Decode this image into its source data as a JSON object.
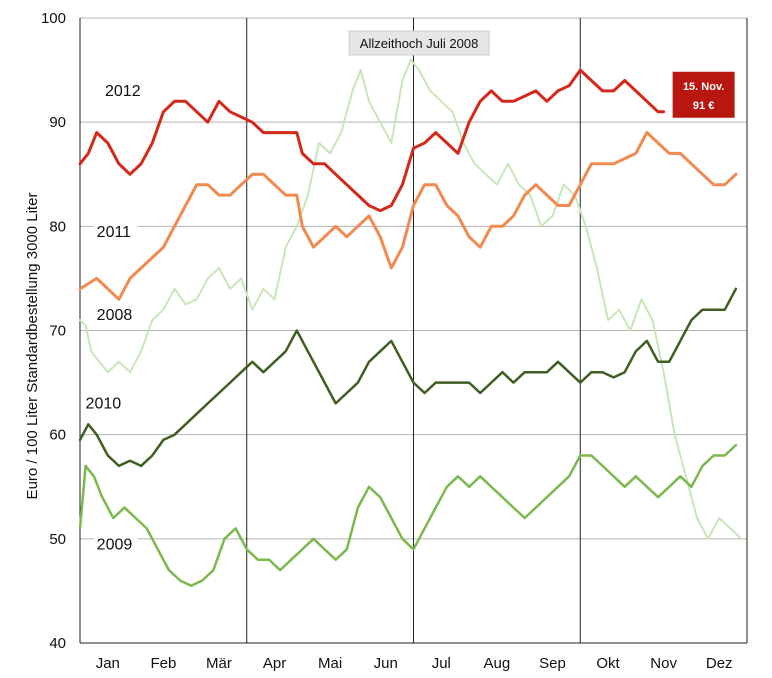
{
  "chart_data": {
    "type": "line",
    "title": "",
    "ylabel": "Euro / 100 Liter Standardbestellung 3000 Liter",
    "xlabel": "",
    "ylim": [
      40,
      100
    ],
    "yticks": [
      40,
      50,
      60,
      70,
      80,
      90,
      100
    ],
    "months": [
      "Jan",
      "Feb",
      "Mär",
      "Apr",
      "Mai",
      "Jun",
      "Jul",
      "Aug",
      "Sep",
      "Okt",
      "Nov",
      "Dez"
    ],
    "grid": {
      "horizontal": true,
      "vertical_month_lines": true
    },
    "annotation": {
      "text": "Allzeithoch Juli 2008",
      "month": 6.1,
      "value": 97.6
    },
    "callout": {
      "line1": "15. Nov.",
      "line2": "91 €",
      "color": "#b8170f"
    },
    "series": [
      {
        "name": "2008",
        "color": "#c8e6b8",
        "width": 2,
        "label_pos": {
          "month": 0.3,
          "value": 71
        },
        "points": [
          [
            0,
            71
          ],
          [
            0.1,
            70.5
          ],
          [
            0.2,
            68
          ],
          [
            0.35,
            67
          ],
          [
            0.5,
            66
          ],
          [
            0.7,
            67
          ],
          [
            0.9,
            66
          ],
          [
            1.1,
            68
          ],
          [
            1.3,
            71
          ],
          [
            1.5,
            72
          ],
          [
            1.7,
            74
          ],
          [
            1.9,
            72.5
          ],
          [
            2.1,
            73
          ],
          [
            2.3,
            75
          ],
          [
            2.5,
            76
          ],
          [
            2.7,
            74
          ],
          [
            2.9,
            75
          ],
          [
            3.1,
            72
          ],
          [
            3.3,
            74
          ],
          [
            3.5,
            73
          ],
          [
            3.7,
            78
          ],
          [
            3.9,
            80
          ],
          [
            4.1,
            83
          ],
          [
            4.3,
            88
          ],
          [
            4.5,
            87
          ],
          [
            4.7,
            89
          ],
          [
            4.9,
            93
          ],
          [
            5.05,
            95
          ],
          [
            5.2,
            92
          ],
          [
            5.4,
            90
          ],
          [
            5.6,
            88
          ],
          [
            5.8,
            94
          ],
          [
            5.95,
            96
          ],
          [
            6.1,
            95
          ],
          [
            6.3,
            93
          ],
          [
            6.5,
            92
          ],
          [
            6.7,
            91
          ],
          [
            6.9,
            88
          ],
          [
            7.1,
            86
          ],
          [
            7.3,
            85
          ],
          [
            7.5,
            84
          ],
          [
            7.7,
            86
          ],
          [
            7.9,
            84
          ],
          [
            8.1,
            83
          ],
          [
            8.3,
            80
          ],
          [
            8.5,
            81
          ],
          [
            8.7,
            84
          ],
          [
            8.9,
            83
          ],
          [
            9.1,
            80
          ],
          [
            9.3,
            76
          ],
          [
            9.5,
            71
          ],
          [
            9.7,
            72
          ],
          [
            9.9,
            70
          ],
          [
            10.1,
            73
          ],
          [
            10.3,
            71
          ],
          [
            10.5,
            66
          ],
          [
            10.7,
            60
          ],
          [
            10.9,
            56
          ],
          [
            11.1,
            52
          ],
          [
            11.3,
            50
          ],
          [
            11.5,
            52
          ],
          [
            11.7,
            51
          ],
          [
            11.9,
            50
          ]
        ]
      },
      {
        "name": "2009",
        "color": "#7bb94f",
        "width": 2.5,
        "label_pos": {
          "month": 0.3,
          "value": 49
        },
        "points": [
          [
            0,
            51
          ],
          [
            0.1,
            57
          ],
          [
            0.25,
            56
          ],
          [
            0.4,
            54
          ],
          [
            0.6,
            52
          ],
          [
            0.8,
            53
          ],
          [
            1.0,
            52
          ],
          [
            1.2,
            51
          ],
          [
            1.4,
            49
          ],
          [
            1.6,
            47
          ],
          [
            1.8,
            46
          ],
          [
            2.0,
            45.5
          ],
          [
            2.2,
            46
          ],
          [
            2.4,
            47
          ],
          [
            2.6,
            50
          ],
          [
            2.8,
            51
          ],
          [
            3.0,
            49
          ],
          [
            3.2,
            48
          ],
          [
            3.4,
            48
          ],
          [
            3.6,
            47
          ],
          [
            3.8,
            48
          ],
          [
            4.0,
            49
          ],
          [
            4.2,
            50
          ],
          [
            4.4,
            49
          ],
          [
            4.6,
            48
          ],
          [
            4.8,
            49
          ],
          [
            5.0,
            53
          ],
          [
            5.2,
            55
          ],
          [
            5.4,
            54
          ],
          [
            5.6,
            52
          ],
          [
            5.8,
            50
          ],
          [
            6.0,
            49
          ],
          [
            6.2,
            51
          ],
          [
            6.4,
            53
          ],
          [
            6.6,
            55
          ],
          [
            6.8,
            56
          ],
          [
            7.0,
            55
          ],
          [
            7.2,
            56
          ],
          [
            7.4,
            55
          ],
          [
            7.6,
            54
          ],
          [
            7.8,
            53
          ],
          [
            8.0,
            52
          ],
          [
            8.2,
            53
          ],
          [
            8.4,
            54
          ],
          [
            8.6,
            55
          ],
          [
            8.8,
            56
          ],
          [
            9.0,
            58
          ],
          [
            9.2,
            58
          ],
          [
            9.4,
            57
          ],
          [
            9.6,
            56
          ],
          [
            9.8,
            55
          ],
          [
            10.0,
            56
          ],
          [
            10.2,
            55
          ],
          [
            10.4,
            54
          ],
          [
            10.6,
            55
          ],
          [
            10.8,
            56
          ],
          [
            11.0,
            55
          ],
          [
            11.2,
            57
          ],
          [
            11.4,
            58
          ],
          [
            11.6,
            58
          ],
          [
            11.8,
            59
          ]
        ]
      },
      {
        "name": "2010",
        "color": "#3f5f22",
        "width": 2.5,
        "label_pos": {
          "month": 0.1,
          "value": 62.5
        },
        "points": [
          [
            0,
            59.5
          ],
          [
            0.15,
            61
          ],
          [
            0.3,
            60
          ],
          [
            0.5,
            58
          ],
          [
            0.7,
            57
          ],
          [
            0.9,
            57.5
          ],
          [
            1.1,
            57
          ],
          [
            1.3,
            58
          ],
          [
            1.5,
            59.5
          ],
          [
            1.7,
            60
          ],
          [
            1.9,
            61
          ],
          [
            2.1,
            62
          ],
          [
            2.3,
            63
          ],
          [
            2.5,
            64
          ],
          [
            2.7,
            65
          ],
          [
            2.9,
            66
          ],
          [
            3.1,
            67
          ],
          [
            3.3,
            66
          ],
          [
            3.5,
            67
          ],
          [
            3.7,
            68
          ],
          [
            3.9,
            70
          ],
          [
            4.0,
            69
          ],
          [
            4.2,
            67
          ],
          [
            4.4,
            65
          ],
          [
            4.6,
            63
          ],
          [
            4.8,
            64
          ],
          [
            5.0,
            65
          ],
          [
            5.2,
            67
          ],
          [
            5.4,
            68
          ],
          [
            5.6,
            69
          ],
          [
            5.8,
            67
          ],
          [
            6.0,
            65
          ],
          [
            6.2,
            64
          ],
          [
            6.4,
            65
          ],
          [
            6.6,
            65
          ],
          [
            6.8,
            65
          ],
          [
            7.0,
            65
          ],
          [
            7.2,
            64
          ],
          [
            7.4,
            65
          ],
          [
            7.6,
            66
          ],
          [
            7.8,
            65
          ],
          [
            8.0,
            66
          ],
          [
            8.2,
            66
          ],
          [
            8.4,
            66
          ],
          [
            8.6,
            67
          ],
          [
            8.8,
            66
          ],
          [
            9.0,
            65
          ],
          [
            9.2,
            66
          ],
          [
            9.4,
            66
          ],
          [
            9.6,
            65.5
          ],
          [
            9.8,
            66
          ],
          [
            10.0,
            68
          ],
          [
            10.2,
            69
          ],
          [
            10.4,
            67
          ],
          [
            10.6,
            67
          ],
          [
            10.8,
            69
          ],
          [
            11.0,
            71
          ],
          [
            11.2,
            72
          ],
          [
            11.4,
            72
          ],
          [
            11.6,
            72
          ],
          [
            11.8,
            74
          ]
        ]
      },
      {
        "name": "2011",
        "color": "#f08a50",
        "width": 3,
        "label_pos": {
          "month": 0.3,
          "value": 79
        },
        "points": [
          [
            0,
            74
          ],
          [
            0.15,
            74.5
          ],
          [
            0.3,
            75
          ],
          [
            0.5,
            74
          ],
          [
            0.7,
            73
          ],
          [
            0.9,
            75
          ],
          [
            1.1,
            76
          ],
          [
            1.3,
            77
          ],
          [
            1.5,
            78
          ],
          [
            1.7,
            80
          ],
          [
            1.9,
            82
          ],
          [
            2.1,
            84
          ],
          [
            2.3,
            84
          ],
          [
            2.5,
            83
          ],
          [
            2.7,
            83
          ],
          [
            2.9,
            84
          ],
          [
            3.1,
            85
          ],
          [
            3.3,
            85
          ],
          [
            3.5,
            84
          ],
          [
            3.7,
            83
          ],
          [
            3.9,
            83
          ],
          [
            4.0,
            80
          ],
          [
            4.2,
            78
          ],
          [
            4.4,
            79
          ],
          [
            4.6,
            80
          ],
          [
            4.8,
            79
          ],
          [
            5.0,
            80
          ],
          [
            5.2,
            81
          ],
          [
            5.4,
            79
          ],
          [
            5.6,
            76
          ],
          [
            5.8,
            78
          ],
          [
            6.0,
            82
          ],
          [
            6.2,
            84
          ],
          [
            6.4,
            84
          ],
          [
            6.6,
            82
          ],
          [
            6.8,
            81
          ],
          [
            7.0,
            79
          ],
          [
            7.2,
            78
          ],
          [
            7.4,
            80
          ],
          [
            7.6,
            80
          ],
          [
            7.8,
            81
          ],
          [
            8.0,
            83
          ],
          [
            8.2,
            84
          ],
          [
            8.4,
            83
          ],
          [
            8.6,
            82
          ],
          [
            8.8,
            82
          ],
          [
            9.0,
            84
          ],
          [
            9.2,
            86
          ],
          [
            9.4,
            86
          ],
          [
            9.6,
            86
          ],
          [
            9.8,
            86.5
          ],
          [
            10.0,
            87
          ],
          [
            10.2,
            89
          ],
          [
            10.4,
            88
          ],
          [
            10.6,
            87
          ],
          [
            10.8,
            87
          ],
          [
            11.0,
            86
          ],
          [
            11.2,
            85
          ],
          [
            11.4,
            84
          ],
          [
            11.6,
            84
          ],
          [
            11.8,
            85
          ]
        ]
      },
      {
        "name": "2012",
        "color": "#d4291a",
        "width": 3,
        "label_pos": {
          "month": 0.45,
          "value": 92.5
        },
        "points": [
          [
            0,
            86
          ],
          [
            0.15,
            87
          ],
          [
            0.3,
            89
          ],
          [
            0.5,
            88
          ],
          [
            0.7,
            86
          ],
          [
            0.9,
            85
          ],
          [
            1.1,
            86
          ],
          [
            1.3,
            88
          ],
          [
            1.5,
            91
          ],
          [
            1.7,
            92
          ],
          [
            1.9,
            92
          ],
          [
            2.1,
            91
          ],
          [
            2.3,
            90
          ],
          [
            2.5,
            92
          ],
          [
            2.7,
            91
          ],
          [
            2.9,
            90.5
          ],
          [
            3.1,
            90
          ],
          [
            3.3,
            89
          ],
          [
            3.5,
            89
          ],
          [
            3.7,
            89
          ],
          [
            3.9,
            89
          ],
          [
            4.0,
            87
          ],
          [
            4.2,
            86
          ],
          [
            4.4,
            86
          ],
          [
            4.6,
            85
          ],
          [
            4.8,
            84
          ],
          [
            5.0,
            83
          ],
          [
            5.2,
            82
          ],
          [
            5.4,
            81.5
          ],
          [
            5.6,
            82
          ],
          [
            5.8,
            84
          ],
          [
            6.0,
            87.5
          ],
          [
            6.2,
            88
          ],
          [
            6.4,
            89
          ],
          [
            6.6,
            88
          ],
          [
            6.8,
            87
          ],
          [
            7.0,
            90
          ],
          [
            7.2,
            92
          ],
          [
            7.4,
            93
          ],
          [
            7.6,
            92
          ],
          [
            7.8,
            92
          ],
          [
            8.0,
            92.5
          ],
          [
            8.2,
            93
          ],
          [
            8.4,
            92
          ],
          [
            8.6,
            93
          ],
          [
            8.8,
            93.5
          ],
          [
            9.0,
            95
          ],
          [
            9.2,
            94
          ],
          [
            9.4,
            93
          ],
          [
            9.6,
            93
          ],
          [
            9.8,
            94
          ],
          [
            10.0,
            93
          ],
          [
            10.2,
            92
          ],
          [
            10.4,
            91
          ],
          [
            10.5,
            91
          ]
        ]
      }
    ]
  }
}
